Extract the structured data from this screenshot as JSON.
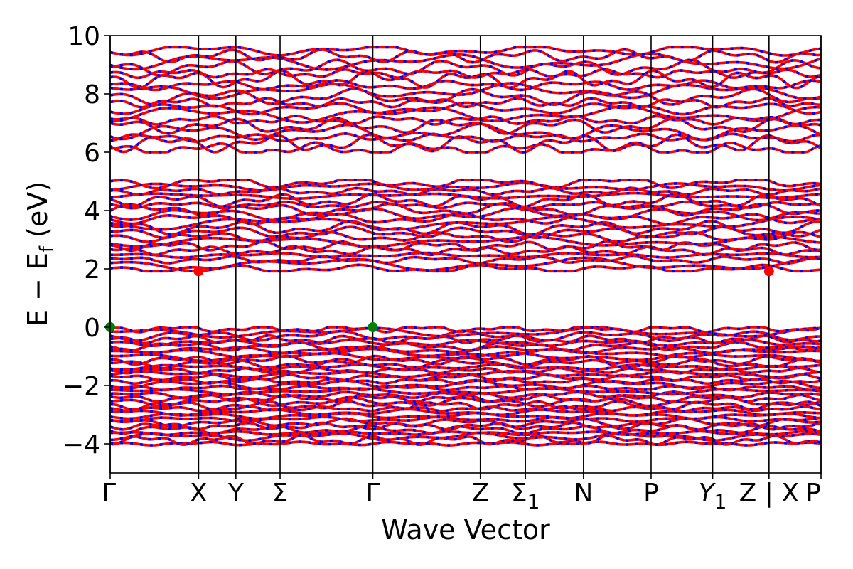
{
  "chart_data": {
    "type": "line",
    "xlabel": "Wave Vector",
    "ylabel": "E − E_f (eV)",
    "ylabel_parts": {
      "a": "E",
      "op": "−",
      "b": "E",
      "sub": "f",
      "unit": "(eV)"
    },
    "ylim": [
      -5,
      10
    ],
    "yticks": [
      {
        "value": 10,
        "label": "10"
      },
      {
        "value": 8,
        "label": "8"
      },
      {
        "value": 6,
        "label": "6"
      },
      {
        "value": 4,
        "label": "4"
      },
      {
        "value": 2,
        "label": "2"
      },
      {
        "value": 0,
        "label": "0"
      },
      {
        "value": -2,
        "label": "−2"
      },
      {
        "value": -4,
        "label": "−4"
      }
    ],
    "xlim": [
      0,
      8.2
    ],
    "kpoints": [
      {
        "x": 0.0,
        "label": "Γ"
      },
      {
        "x": 1.02,
        "label": "X"
      },
      {
        "x": 1.45,
        "label": "Y"
      },
      {
        "x": 1.96,
        "label": "Σ"
      },
      {
        "x": 3.03,
        "label": "Γ"
      },
      {
        "x": 4.27,
        "label": "Z"
      },
      {
        "x": 4.79,
        "label": "Σ",
        "sub": "1"
      },
      {
        "x": 5.46,
        "label": "N"
      },
      {
        "x": 6.24,
        "label": "P"
      },
      {
        "x": 6.95,
        "label": "Y",
        "sub": "1",
        "italic": true
      },
      {
        "x": 7.6,
        "label": "Z | X"
      },
      {
        "x": 8.2,
        "label": "P"
      }
    ],
    "band_colors": {
      "spin_up": "#0000ff",
      "spin_down": "#ff0000"
    },
    "markers": [
      {
        "name": "VBM",
        "color": "#008000",
        "points": [
          [
            0.0,
            0.0
          ],
          [
            3.03,
            0.0
          ]
        ]
      },
      {
        "name": "CBM",
        "color": "#ff0000",
        "points": [
          [
            1.02,
            1.92
          ],
          [
            7.6,
            1.92
          ]
        ]
      }
    ],
    "band_groups": [
      {
        "name": "upper-conduction",
        "emin": 6.0,
        "emax": 9.6,
        "count": 18
      },
      {
        "name": "lower-conduction",
        "emin": 1.92,
        "emax": 5.05,
        "count": 20
      },
      {
        "name": "valence",
        "emin": -4.05,
        "emax": 0.0,
        "count": 34
      }
    ]
  }
}
